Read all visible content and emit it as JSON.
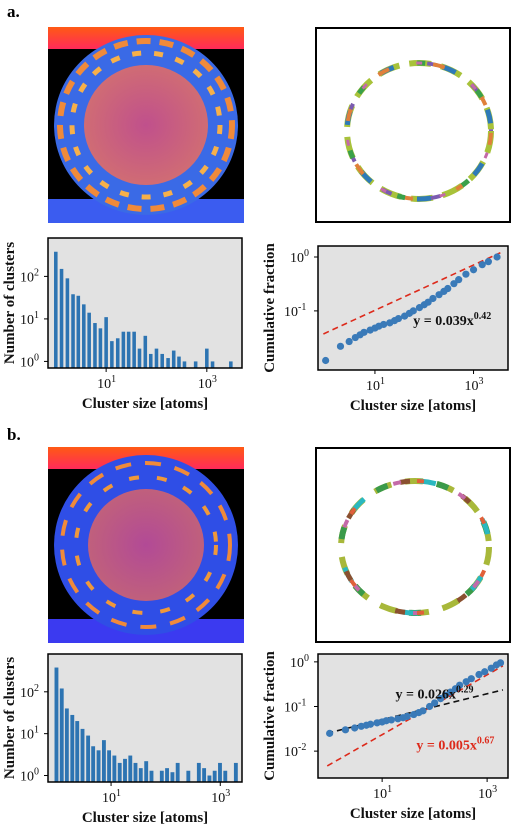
{
  "panels": [
    {
      "label": "a."
    },
    {
      "label": "b."
    }
  ],
  "colors": {
    "bar": "#2d74b2",
    "point": "#3a7ab8",
    "fit_red": "#dd2a1b",
    "fit_black": "#111111",
    "plot_bg": "#e2e2e2",
    "sim_black": "#000000",
    "sim_blue": "#2f62e8",
    "sim_orange": "#f08a3a",
    "sim_core": "#c45a8a"
  },
  "chart_data": [
    {
      "id": "a-hist",
      "type": "bar",
      "xscale": "log",
      "yscale": "log",
      "xlim": [
        0.7,
        5000
      ],
      "ylim": [
        0.7,
        800
      ],
      "xlabel": "Cluster size [atoms]",
      "ylabel": "Number of clusters",
      "xticks": [
        {
          "v": 10,
          "t": "10",
          "e": "1"
        },
        {
          "v": 1000,
          "t": "10",
          "e": "3"
        }
      ],
      "yticks": [
        {
          "v": 1,
          "t": "10",
          "e": "0"
        },
        {
          "v": 10,
          "t": "10",
          "e": "1"
        },
        {
          "v": 100,
          "t": "10",
          "e": "2"
        }
      ],
      "bars": [
        {
          "x": 1.0,
          "y": 380
        },
        {
          "x": 1.3,
          "y": 150
        },
        {
          "x": 1.7,
          "y": 90
        },
        {
          "x": 2.2,
          "y": 38
        },
        {
          "x": 2.8,
          "y": 35
        },
        {
          "x": 3.6,
          "y": 22
        },
        {
          "x": 4.6,
          "y": 14
        },
        {
          "x": 6.0,
          "y": 8
        },
        {
          "x": 7.7,
          "y": 6
        },
        {
          "x": 10,
          "y": 11
        },
        {
          "x": 13,
          "y": 3
        },
        {
          "x": 17,
          "y": 3.5
        },
        {
          "x": 22,
          "y": 5
        },
        {
          "x": 28,
          "y": 5
        },
        {
          "x": 36,
          "y": 5
        },
        {
          "x": 46,
          "y": 2
        },
        {
          "x": 60,
          "y": 4
        },
        {
          "x": 77,
          "y": 1.5
        },
        {
          "x": 100,
          "y": 2
        },
        {
          "x": 130,
          "y": 1.5
        },
        {
          "x": 170,
          "y": 1.2
        },
        {
          "x": 220,
          "y": 1.8
        },
        {
          "x": 280,
          "y": 1.3
        },
        {
          "x": 360,
          "y": 1
        },
        {
          "x": 600,
          "y": 1
        },
        {
          "x": 1000,
          "y": 2
        },
        {
          "x": 1300,
          "y": 1
        },
        {
          "x": 3000,
          "y": 1
        }
      ]
    },
    {
      "id": "a-cum",
      "type": "scatter",
      "xscale": "log",
      "yscale": "log",
      "xlim": [
        0.7,
        5000
      ],
      "ylim": [
        0.008,
        1.6
      ],
      "xlabel": "Cluster size [atoms]",
      "ylabel": "Cumulative fraction",
      "xticks": [
        {
          "v": 10,
          "t": "10",
          "e": "1"
        },
        {
          "v": 1000,
          "t": "10",
          "e": "3"
        }
      ],
      "yticks": [
        {
          "v": 0.1,
          "t": "10",
          "e": "-1"
        },
        {
          "v": 1,
          "t": "10",
          "e": "0"
        }
      ],
      "points": [
        {
          "x": 1,
          "y": 0.012
        },
        {
          "x": 2,
          "y": 0.022
        },
        {
          "x": 3,
          "y": 0.027
        },
        {
          "x": 4,
          "y": 0.032
        },
        {
          "x": 5,
          "y": 0.036
        },
        {
          "x": 6,
          "y": 0.04
        },
        {
          "x": 8,
          "y": 0.044
        },
        {
          "x": 10,
          "y": 0.048
        },
        {
          "x": 12,
          "y": 0.052
        },
        {
          "x": 15,
          "y": 0.056
        },
        {
          "x": 20,
          "y": 0.06
        },
        {
          "x": 25,
          "y": 0.066
        },
        {
          "x": 30,
          "y": 0.072
        },
        {
          "x": 40,
          "y": 0.08
        },
        {
          "x": 50,
          "y": 0.09
        },
        {
          "x": 60,
          "y": 0.1
        },
        {
          "x": 80,
          "y": 0.115
        },
        {
          "x": 100,
          "y": 0.13
        },
        {
          "x": 120,
          "y": 0.145
        },
        {
          "x": 150,
          "y": 0.17
        },
        {
          "x": 200,
          "y": 0.2
        },
        {
          "x": 250,
          "y": 0.23
        },
        {
          "x": 300,
          "y": 0.26
        },
        {
          "x": 400,
          "y": 0.32
        },
        {
          "x": 500,
          "y": 0.38
        },
        {
          "x": 700,
          "y": 0.48
        },
        {
          "x": 1000,
          "y": 0.58
        },
        {
          "x": 1500,
          "y": 0.72
        },
        {
          "x": 2000,
          "y": 0.82
        },
        {
          "x": 3000,
          "y": 1.0
        }
      ],
      "fits": [
        {
          "a": 0.039,
          "b": 0.42,
          "x0": 0.9,
          "x1": 3500,
          "color": "#dd2a1b",
          "text": "y = 0.039x",
          "exp": "0.42",
          "labelColor": "#111111"
        }
      ]
    },
    {
      "id": "b-hist",
      "type": "bar",
      "xscale": "log",
      "yscale": "log",
      "xlim": [
        0.7,
        2500
      ],
      "ylim": [
        0.7,
        800
      ],
      "xlabel": "Cluster size [atoms]",
      "ylabel": "Number of clusters",
      "xticks": [
        {
          "v": 10,
          "t": "10",
          "e": "1"
        },
        {
          "v": 1000,
          "t": "10",
          "e": "3"
        }
      ],
      "yticks": [
        {
          "v": 1,
          "t": "10",
          "e": "0"
        },
        {
          "v": 10,
          "t": "10",
          "e": "1"
        },
        {
          "v": 100,
          "t": "10",
          "e": "2"
        }
      ],
      "bars": [
        {
          "x": 1.0,
          "y": 380
        },
        {
          "x": 1.25,
          "y": 120
        },
        {
          "x": 1.55,
          "y": 40
        },
        {
          "x": 1.95,
          "y": 28
        },
        {
          "x": 2.4,
          "y": 20
        },
        {
          "x": 3.0,
          "y": 13
        },
        {
          "x": 3.8,
          "y": 9
        },
        {
          "x": 4.7,
          "y": 5
        },
        {
          "x": 5.9,
          "y": 4
        },
        {
          "x": 7.4,
          "y": 7
        },
        {
          "x": 9.2,
          "y": 4
        },
        {
          "x": 11.5,
          "y": 3
        },
        {
          "x": 14.4,
          "y": 2
        },
        {
          "x": 18,
          "y": 2.5
        },
        {
          "x": 22.5,
          "y": 3
        },
        {
          "x": 28,
          "y": 2
        },
        {
          "x": 35,
          "y": 1.5
        },
        {
          "x": 44,
          "y": 2.2
        },
        {
          "x": 55,
          "y": 1.3
        },
        {
          "x": 85,
          "y": 1.3
        },
        {
          "x": 106,
          "y": 1.5
        },
        {
          "x": 133,
          "y": 1.2
        },
        {
          "x": 166,
          "y": 2
        },
        {
          "x": 260,
          "y": 1.3
        },
        {
          "x": 405,
          "y": 2
        },
        {
          "x": 506,
          "y": 1.5
        },
        {
          "x": 633,
          "y": 1
        },
        {
          "x": 790,
          "y": 1.3
        },
        {
          "x": 988,
          "y": 2
        },
        {
          "x": 1235,
          "y": 1.3
        },
        {
          "x": 1930,
          "y": 2
        }
      ]
    },
    {
      "id": "b-cum",
      "type": "scatter",
      "xscale": "log",
      "yscale": "log",
      "xlim": [
        0.6,
        2500
      ],
      "ylim": [
        0.0025,
        1.5
      ],
      "xlabel": "Cluster size [atoms]",
      "ylabel": "Cumulative fraction",
      "xticks": [
        {
          "v": 10,
          "t": "10",
          "e": "1"
        },
        {
          "v": 1000,
          "t": "10",
          "e": "3"
        }
      ],
      "yticks": [
        {
          "v": 0.01,
          "t": "10",
          "e": "-2"
        },
        {
          "v": 0.1,
          "t": "10",
          "e": "-1"
        },
        {
          "v": 1,
          "t": "10",
          "e": "0"
        }
      ],
      "points": [
        {
          "x": 1,
          "y": 0.025
        },
        {
          "x": 2,
          "y": 0.03
        },
        {
          "x": 3,
          "y": 0.033
        },
        {
          "x": 4,
          "y": 0.036
        },
        {
          "x": 5,
          "y": 0.038
        },
        {
          "x": 6,
          "y": 0.04
        },
        {
          "x": 8,
          "y": 0.043
        },
        {
          "x": 10,
          "y": 0.045
        },
        {
          "x": 12,
          "y": 0.048
        },
        {
          "x": 15,
          "y": 0.05
        },
        {
          "x": 20,
          "y": 0.053
        },
        {
          "x": 25,
          "y": 0.056
        },
        {
          "x": 30,
          "y": 0.06
        },
        {
          "x": 40,
          "y": 0.066
        },
        {
          "x": 50,
          "y": 0.073
        },
        {
          "x": 60,
          "y": 0.08
        },
        {
          "x": 80,
          "y": 0.1
        },
        {
          "x": 100,
          "y": 0.12
        },
        {
          "x": 130,
          "y": 0.15
        },
        {
          "x": 160,
          "y": 0.18
        },
        {
          "x": 200,
          "y": 0.21
        },
        {
          "x": 250,
          "y": 0.25
        },
        {
          "x": 300,
          "y": 0.3
        },
        {
          "x": 400,
          "y": 0.36
        },
        {
          "x": 500,
          "y": 0.42
        },
        {
          "x": 700,
          "y": 0.52
        },
        {
          "x": 900,
          "y": 0.6
        },
        {
          "x": 1200,
          "y": 0.72
        },
        {
          "x": 1500,
          "y": 0.85
        },
        {
          "x": 1800,
          "y": 0.95
        }
      ],
      "fits": [
        {
          "a": 0.026,
          "b": 0.29,
          "x0": 0.9,
          "x1": 2000,
          "color": "#111111",
          "text": "y = 0.026x",
          "exp": "0.29",
          "labelColor": "#111111"
        },
        {
          "a": 0.005,
          "b": 0.67,
          "x0": 0.9,
          "x1": 2000,
          "color": "#dd2a1b",
          "text": "y = 0.005x",
          "exp": "0.67",
          "labelColor": "#dd2a1b"
        }
      ]
    }
  ]
}
